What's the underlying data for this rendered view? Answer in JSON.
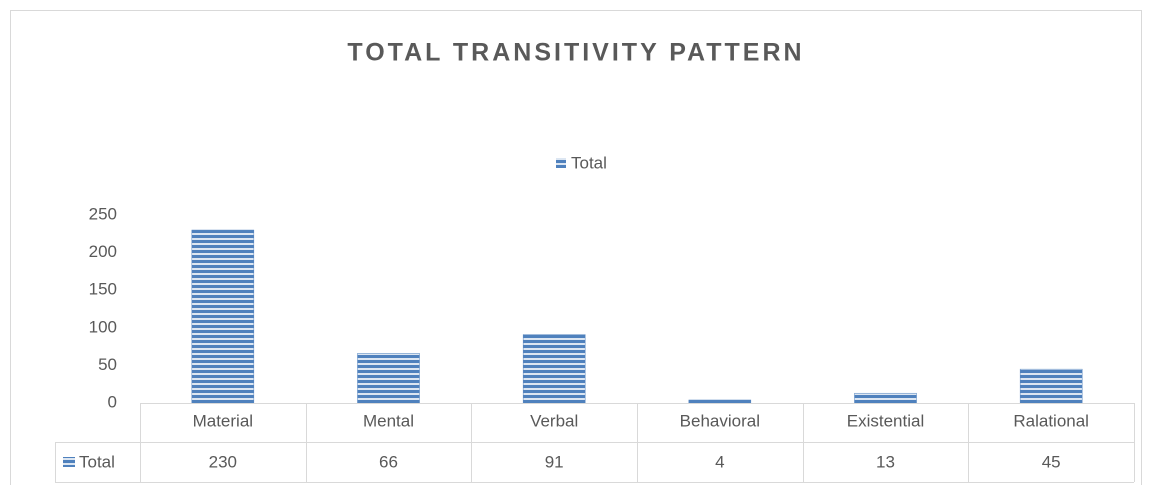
{
  "chart_data": {
    "type": "bar",
    "title": "TOTAL TRANSITIVITY PATTERN",
    "categories": [
      "Material",
      "Mental",
      "Verbal",
      "Behavioral",
      "Existential",
      "Ralational"
    ],
    "series": [
      {
        "name": "Total",
        "color": "#4f81bd",
        "values": [
          230,
          66,
          91,
          4,
          13,
          45
        ]
      }
    ],
    "ylim": [
      0,
      250
    ],
    "yticks": [
      0,
      50,
      100,
      150,
      200,
      250
    ],
    "legend": "top",
    "data_table": true,
    "grid": false
  }
}
